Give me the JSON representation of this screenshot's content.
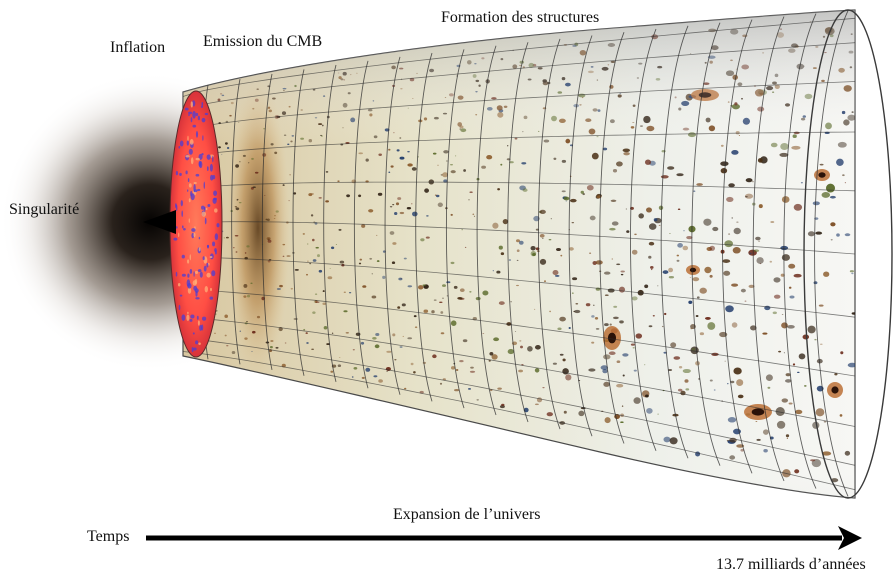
{
  "labels": {
    "formation": "Formation des structures",
    "inflation": "Inflation",
    "cmb": "Emission du CMB",
    "singularity": "Singularité",
    "expansion": "Expansion de l’univers",
    "time": "Temps",
    "age": "13.7 milliards d’années"
  },
  "colors": {
    "text": "#111111",
    "arrow": "#000000",
    "glow": "#2a2018",
    "cmb_disk": "#ff5a4a",
    "cmb_spots": "#4b3dd6",
    "cmb_band": "#c89a55",
    "tube_fill": "#eef1ea",
    "grid": "#2c2c2c"
  },
  "icons": {
    "arrow": "arrow-right-icon",
    "singularity": "singularity-point-icon"
  }
}
